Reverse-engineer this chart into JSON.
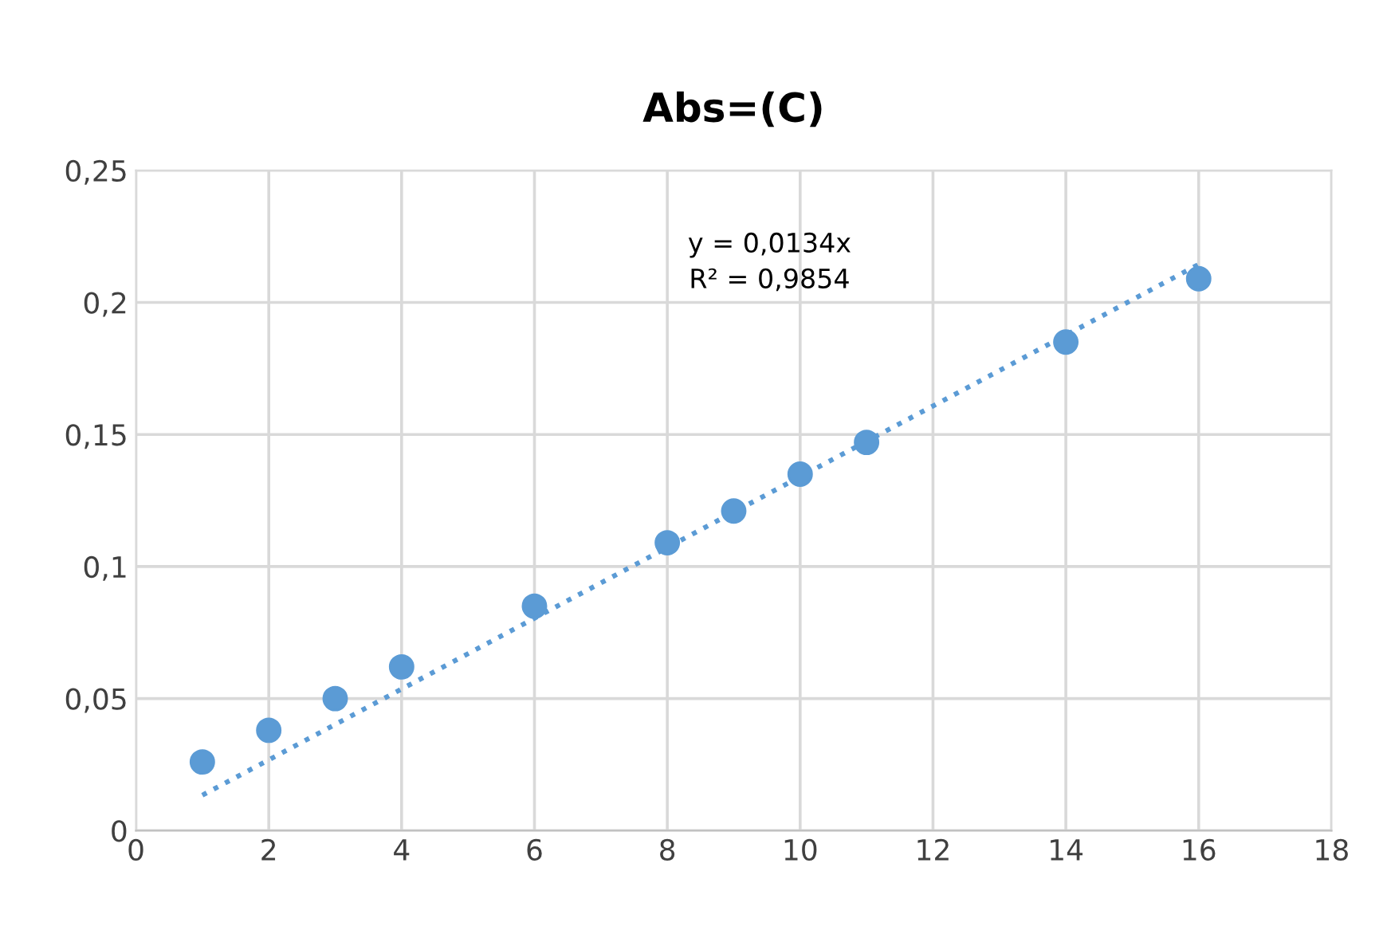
{
  "chart_data": {
    "type": "scatter",
    "title": "Abs=(C)",
    "series": [
      {
        "color": "#5b9bd5",
        "marker": "circle",
        "x": [
          1,
          2,
          3,
          4,
          6,
          8,
          9,
          10,
          11,
          14,
          16
        ],
        "values": [
          0.026,
          0.038,
          0.05,
          0.062,
          0.085,
          0.109,
          0.121,
          0.135,
          0.147,
          0.185,
          0.209
        ]
      },
      {
        "type": "line",
        "color": "#5b9bd5",
        "marker": "none",
        "line_style": "dotted",
        "x": [
          1,
          16
        ],
        "values": [
          0.0134,
          0.2144
        ]
      }
    ],
    "annotations": [
      "y = 0,0134x\nR² = 0,9854"
    ],
    "xlim": [
      0,
      18
    ],
    "xticks": [
      0,
      2,
      4,
      6,
      8,
      10,
      12,
      14,
      16,
      18
    ],
    "ylim": [
      0,
      0.25
    ],
    "yticks": [
      0,
      {
        "value": 0.05,
        "label": "0,05"
      },
      {
        "value": 0.1,
        "label": "0,1"
      },
      {
        "value": 0.15,
        "label": "0,15"
      },
      {
        "value": 0.2,
        "label": "0,2"
      },
      {
        "value": 0.25,
        "label": "0,25"
      }
    ],
    "grid": true,
    "legend": false
  }
}
